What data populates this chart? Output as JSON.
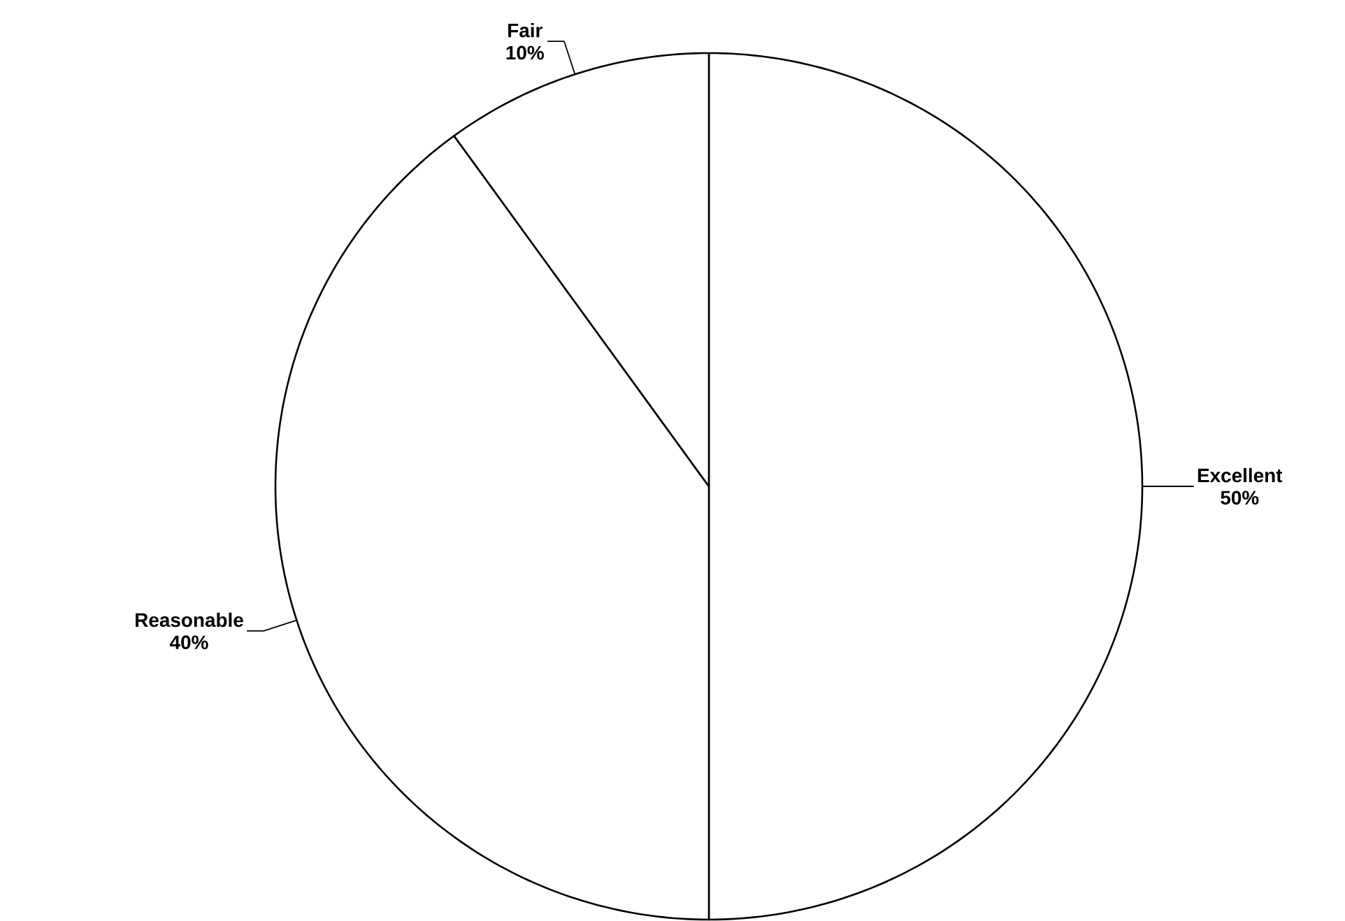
{
  "chart_data": {
    "type": "pie",
    "categories": [
      "Excellent",
      "Reasonable",
      "Fair"
    ],
    "values": [
      50,
      40,
      10
    ],
    "value_labels": [
      "50%",
      "40%",
      "10%"
    ],
    "colors": [
      "#ffffff",
      "#ffffff",
      "#ffffff"
    ]
  }
}
